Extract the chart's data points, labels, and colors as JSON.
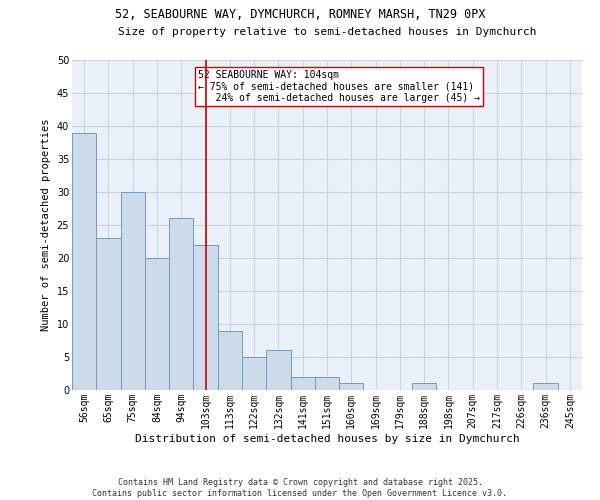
{
  "title1": "52, SEABOURNE WAY, DYMCHURCH, ROMNEY MARSH, TN29 0PX",
  "title2": "Size of property relative to semi-detached houses in Dymchurch",
  "xlabel": "Distribution of semi-detached houses by size in Dymchurch",
  "ylabel": "Number of semi-detached properties",
  "categories": [
    "56sqm",
    "65sqm",
    "75sqm",
    "84sqm",
    "94sqm",
    "103sqm",
    "113sqm",
    "122sqm",
    "132sqm",
    "141sqm",
    "151sqm",
    "160sqm",
    "169sqm",
    "179sqm",
    "188sqm",
    "198sqm",
    "207sqm",
    "217sqm",
    "226sqm",
    "236sqm",
    "245sqm"
  ],
  "values": [
    39,
    23,
    30,
    20,
    26,
    22,
    9,
    5,
    6,
    2,
    2,
    1,
    0,
    0,
    1,
    0,
    0,
    0,
    0,
    1,
    0
  ],
  "bar_color": "#ccdaea",
  "bar_edge_color": "#6a9ec0",
  "grid_color": "#c8d4e0",
  "background_color": "#eaf0f8",
  "vline_x": 5,
  "vline_color": "#cc0000",
  "annotation_text": "52 SEABOURNE WAY: 104sqm\n← 75% of semi-detached houses are smaller (141)\n   24% of semi-detached houses are larger (45) →",
  "annotation_box_color": "#ffffff",
  "annotation_box_edge": "#cc0000",
  "footer": "Contains HM Land Registry data © Crown copyright and database right 2025.\nContains public sector information licensed under the Open Government Licence v3.0.",
  "ylim": [
    0,
    50
  ],
  "yticks": [
    0,
    5,
    10,
    15,
    20,
    25,
    30,
    35,
    40,
    45,
    50
  ],
  "title1_fontsize": 8.5,
  "title2_fontsize": 8.0,
  "xlabel_fontsize": 8.0,
  "ylabel_fontsize": 7.5,
  "tick_fontsize": 7.0,
  "ann_fontsize": 7.0,
  "footer_fontsize": 6.0
}
